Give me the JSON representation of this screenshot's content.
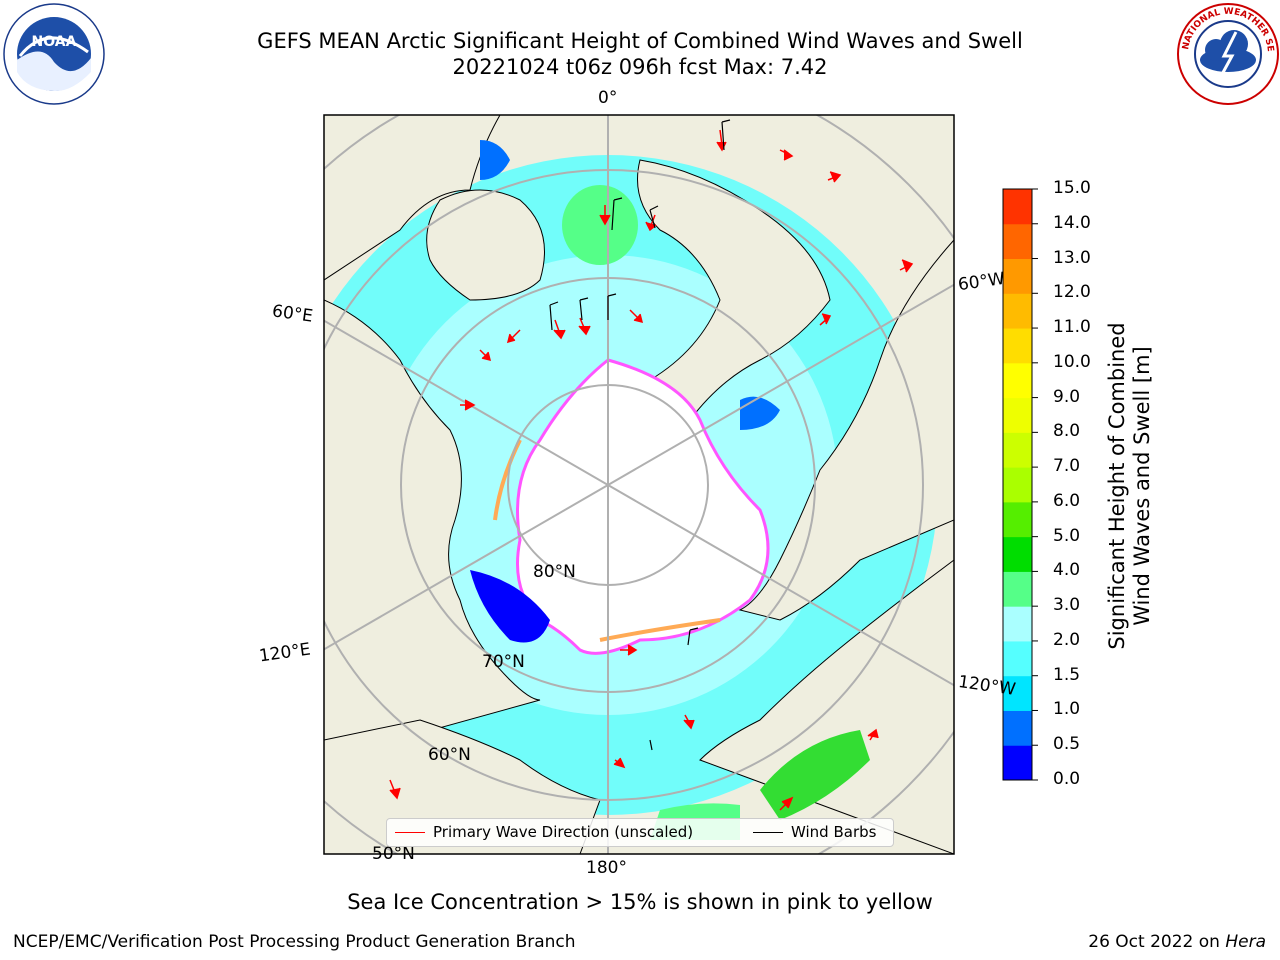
{
  "header": {
    "title_line1": "GEFS MEAN Arctic Significant Height of Combined Wind Waves and Swell",
    "title_line2": "20221024 t06z 096h fcst   Max: 7.42"
  },
  "logos": {
    "left": "NOAA",
    "right": "NATIONAL WEATHER SERVICE"
  },
  "map": {
    "longitude_labels": [
      "0°",
      "60°E",
      "60°W",
      "120°E",
      "120°W",
      "180°"
    ],
    "latitude_labels": [
      "80°N",
      "70°N",
      "60°N",
      "50°N"
    ]
  },
  "colorbar": {
    "label_line1": "Significant Height of Combined",
    "label_line2": "Wind Waves and Swell [m]",
    "ticks": [
      "15.0",
      "14.0",
      "13.0",
      "12.0",
      "11.0",
      "10.0",
      "9.0",
      "8.0",
      "7.0",
      "6.0",
      "5.0",
      "4.0",
      "3.0",
      "2.0",
      "1.5",
      "1.0",
      "0.5",
      "0.0"
    ],
    "colors": [
      "#0000ff",
      "#0070ff",
      "#00e5ff",
      "#55ffff",
      "#aaffff",
      "#55ff88",
      "#00dd00",
      "#55ee00",
      "#aaff00",
      "#ccff00",
      "#eeff00",
      "#ffff00",
      "#ffdd00",
      "#ffbb00",
      "#ff9900",
      "#ff6600",
      "#ff3300"
    ]
  },
  "legend": {
    "wave_direction": "Primary Wave Direction (unscaled)",
    "wind_barbs": "Wind Barbs",
    "wave_color": "#ff0000",
    "barb_color": "#000000"
  },
  "footer": {
    "note": "Sea Ice Concentration > 15% is shown in pink to yellow",
    "left": "NCEP/EMC/Verification Post Processing Product Generation Branch",
    "date": "26 Oct 2022 on",
    "host": "Hera"
  }
}
